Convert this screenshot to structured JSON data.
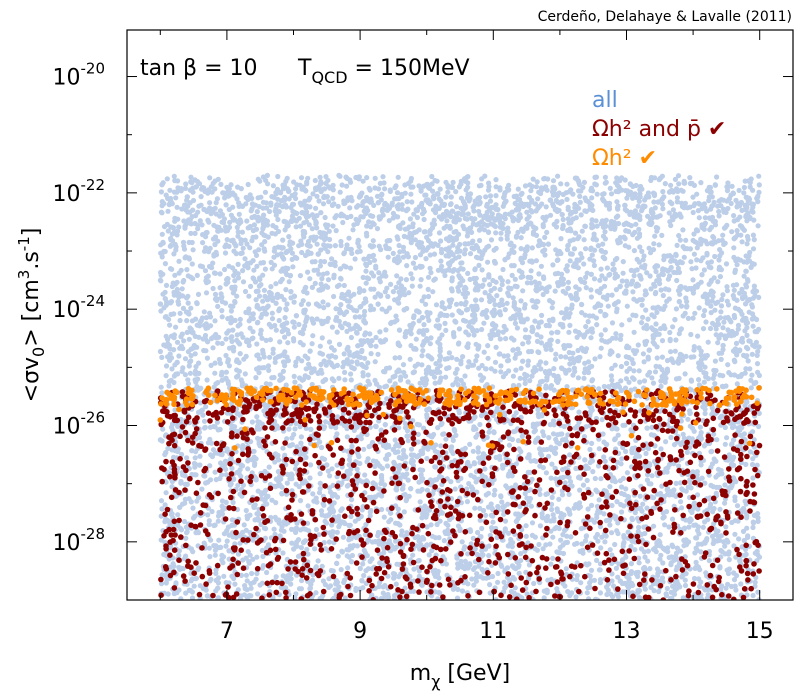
{
  "chart_data": {
    "type": "scatter",
    "credit": "Cerdeño, Delahaye & Lavalle (2011)",
    "annotation": {
      "tan_beta": "tan β = 10",
      "tqcd_main": "T",
      "tqcd_sub": "QCD",
      "tqcd_value": " = 150MeV"
    },
    "xlabel": {
      "main": "m",
      "sub": "χ",
      "rest": " [GeV]"
    },
    "ylabel": {
      "a": "<σv",
      "sub": "0",
      "b": "> [cm",
      "sup1": "3",
      "c": ".s",
      "sup2": "-1",
      "d": "]"
    },
    "xlim": [
      5.5,
      15.5
    ],
    "ylim": [
      -29.0,
      -19.2
    ],
    "y_scale": "log10",
    "x_ticks": [
      7,
      9,
      11,
      13,
      15
    ],
    "x_tick_labels": [
      "7",
      "9",
      "11",
      "13",
      "15"
    ],
    "y_ticks": [
      -28,
      -26,
      -24,
      -22,
      -20
    ],
    "y_tick_labels": [
      "10",
      "10",
      "10",
      "10",
      "10"
    ],
    "y_tick_exponents": [
      "-28",
      "-26",
      "-24",
      "-22",
      "-20"
    ],
    "grid": false,
    "legend": {
      "placement": "top-right",
      "entries": [
        {
          "label": "all",
          "color": "#5b8fd6"
        },
        {
          "label": "Ωh² and p̄ ✔",
          "color": "#8b0000"
        },
        {
          "label": "Ωh² ✔",
          "color": "#ff8c00"
        }
      ]
    },
    "series": [
      {
        "name": "all",
        "color": "#bccee8",
        "x_range": [
          6.0,
          15.0
        ],
        "log10_y_range": [
          -29.0,
          -21.7
        ]
      },
      {
        "name": "Ωh² and p̄ ✔",
        "color": "#8b0000",
        "x_range": [
          6.0,
          15.0
        ],
        "log10_y_range": [
          -29.0,
          -25.4
        ]
      },
      {
        "name": "Ωh² ✔",
        "color": "#ff8c00",
        "x_range": [
          6.0,
          15.0
        ],
        "log10_y_range": [
          -25.65,
          -25.35
        ]
      }
    ]
  }
}
